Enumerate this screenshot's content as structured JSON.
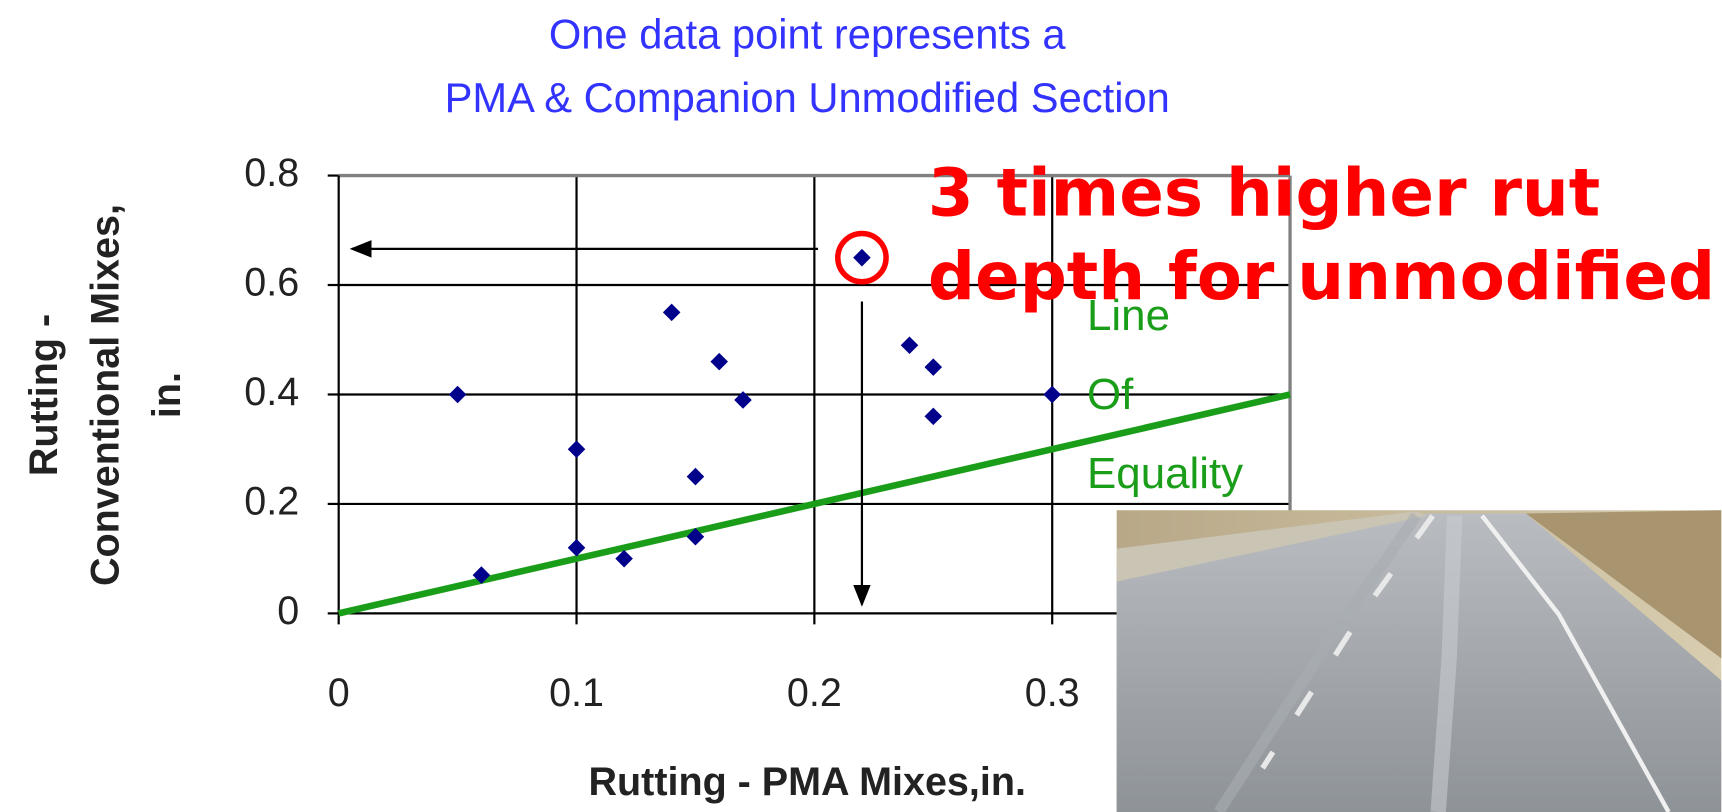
{
  "chart_data": {
    "type": "scatter",
    "title": [
      "One data point represents a",
      "PMA & Companion Unmodified Section"
    ],
    "title_color": "#3333ff",
    "x_label": "Rutting - PMA Mixes,in.",
    "y_label": [
      "Rutting -",
      "Conventional Mixes,",
      "in."
    ],
    "x": [
      0.05,
      0.06,
      0.1,
      0.1,
      0.12,
      0.14,
      0.15,
      0.15,
      0.16,
      0.17,
      0.22,
      0.24,
      0.25,
      0.25,
      0.3
    ],
    "y": [
      0.4,
      0.07,
      0.3,
      0.12,
      0.1,
      0.55,
      0.25,
      0.14,
      0.46,
      0.39,
      0.65,
      0.49,
      0.45,
      0.36,
      0.4
    ],
    "color": "#00008b",
    "xlim": [
      0,
      0.4
    ],
    "ylim": [
      0,
      0.8
    ],
    "xticks": [
      0,
      0.1,
      0.2,
      0.3
    ],
    "yticks": [
      0,
      0.2,
      0.4,
      0.6,
      0.8
    ],
    "grid": true,
    "equality_line": {
      "label": [
        "Line",
        "Of",
        "Equality"
      ],
      "x": [
        0,
        0.4
      ],
      "y": [
        0,
        0.4
      ],
      "color": "#1a9e1a"
    },
    "highlight_index": 10,
    "annotation": {
      "text": [
        "3 times higher rut",
        "depth for unmodified"
      ],
      "color": "#ff0000"
    }
  }
}
